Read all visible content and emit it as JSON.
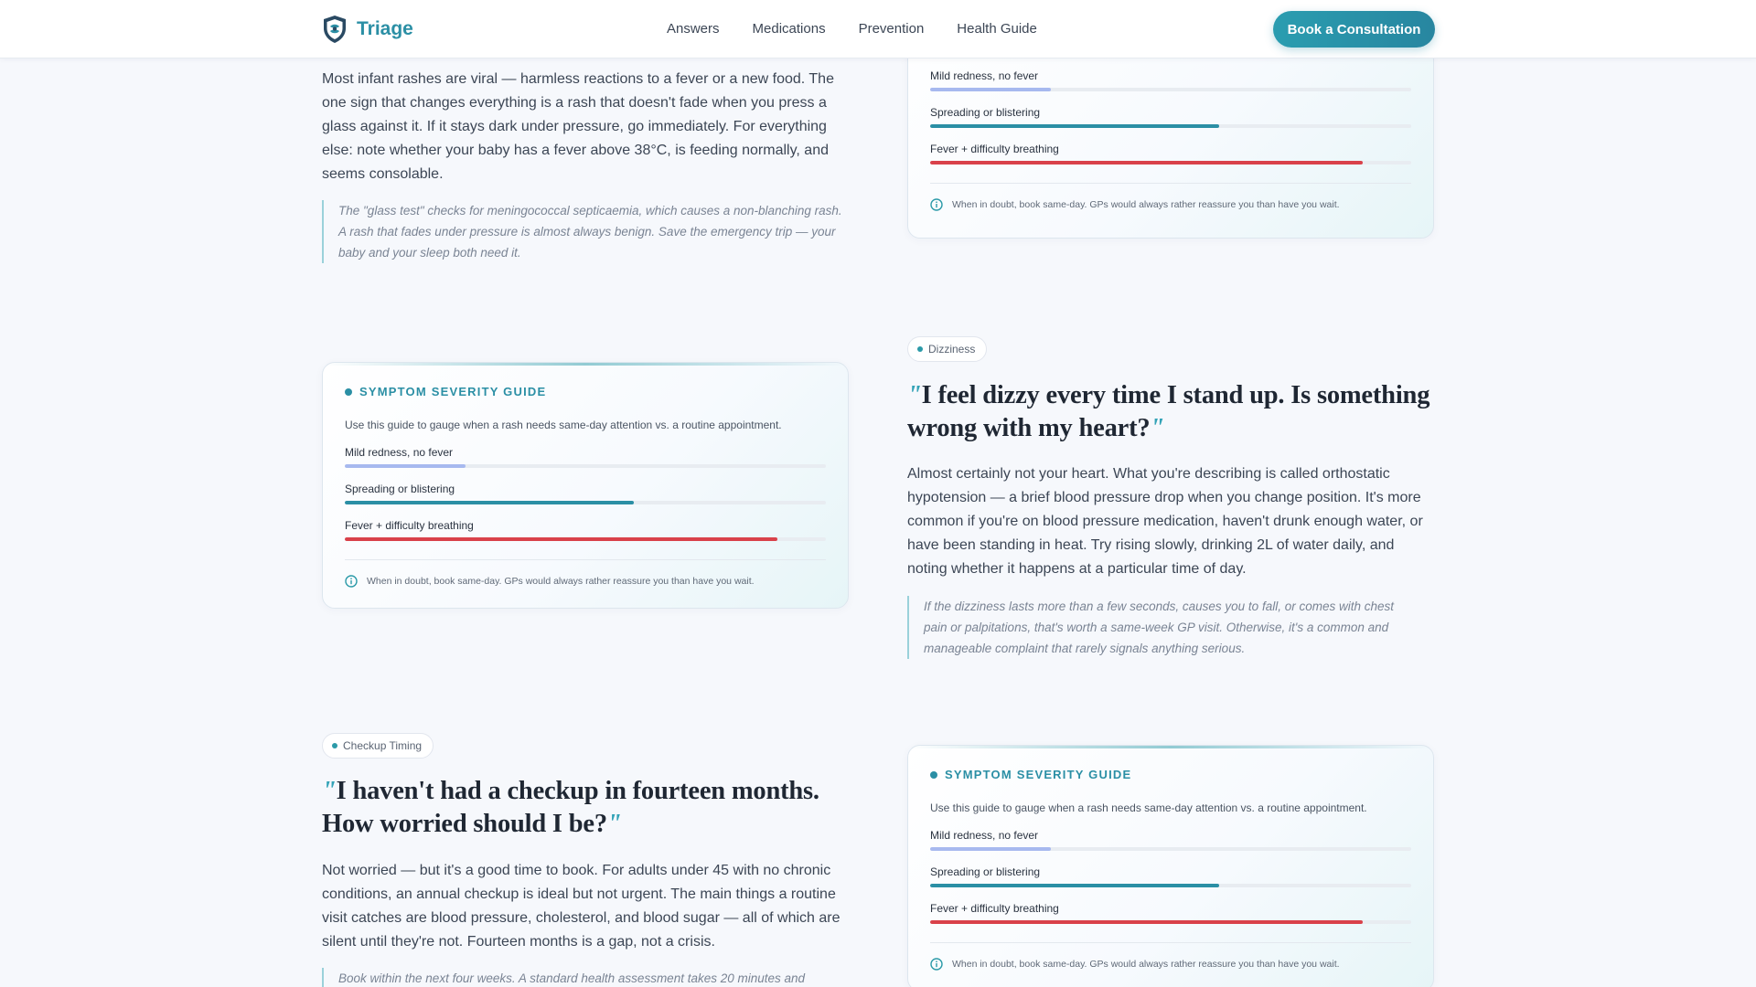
{
  "header": {
    "logo_text": "Triage",
    "nav": [
      "Answers",
      "Medications",
      "Prevention",
      "Health Guide"
    ],
    "cta_label": "Book a Consultation"
  },
  "colors": {
    "accent": "#2b8fa5",
    "mild": "#a7b9ef",
    "moderate": "#2b8fa5",
    "severe": "#d9414a"
  },
  "severity_guide": {
    "title": "SYMPTOM SEVERITY GUIDE",
    "description": "Use this guide to gauge when a rash needs same-day attention vs. a routine appointment.",
    "levels": [
      {
        "label": "Mild redness, no fever",
        "level_pct": 25
      },
      {
        "label": "Spreading or blistering",
        "level_pct": 60
      },
      {
        "label": "Fever + difficulty breathing",
        "level_pct": 90
      }
    ],
    "footer_note": "When in doubt, book same-day. GPs would always rather reassure you than have you wait."
  },
  "rash": {
    "answer": "Most infant rashes are viral — harmless reactions to a fever or a new food. The one sign that changes everything is a rash that doesn't fade when you press a glass against it. If it stays dark under pressure, go immediately. For everything else: note whether your baby has a fever above 38°C, is feeding normally, and seems consolable.",
    "note": "The \"glass test\" checks for meningococcal septicaemia, which causes a non-blanching rash. A rash that fades under pressure is almost always benign. Save the emergency trip — your baby and your sleep both need it."
  },
  "dizziness": {
    "tag": "Dizziness",
    "question": "I feel dizzy every time I stand up. Is something wrong with my heart?",
    "answer": "Almost certainly not your heart. What you're describing is called orthostatic hypotension — a brief blood pressure drop when you change position. It's more common if you're on blood pressure medication, haven't drunk enough water, or have been standing in heat. Try rising slowly, drinking 2L of water daily, and noting whether it happens at a particular time of day.",
    "note": "If the dizziness lasts more than a few seconds, causes you to fall, or comes with chest pain or palpitations, that's worth a same-week GP visit. Otherwise, it's a common and manageable complaint that rarely signals anything serious."
  },
  "checkup": {
    "tag": "Checkup Timing",
    "question": "I haven't had a checkup in fourteen months. How worried should I be?",
    "answer": "Not worried — but it's a good time to book. For adults under 45 with no chronic conditions, an annual checkup is ideal but not urgent. The main things a routine visit catches are blood pressure, cholesterol, and blood sugar — all of which are silent until they're not. Fourteen months is a gap, not a crisis.",
    "note": "Book within the next four weeks. A standard health assessment takes 20 minutes and"
  }
}
